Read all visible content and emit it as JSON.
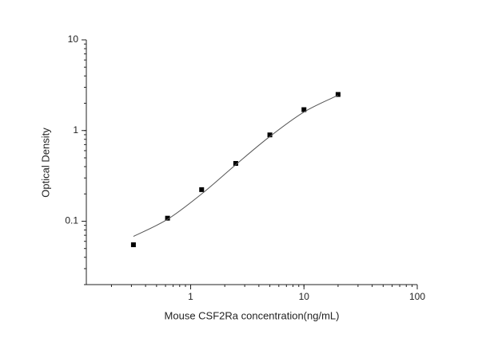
{
  "chart_data": {
    "type": "scatter",
    "x_label": "Mouse CSF2Ra concentration(ng/mL)",
    "y_label": "Optical Density",
    "x_log": true,
    "y_log": true,
    "xlim": [
      0.12,
      100
    ],
    "xticks": [
      1,
      10,
      100
    ],
    "ylim": [
      0.02,
      10
    ],
    "yticks": [
      0.1,
      1,
      10
    ],
    "series": [
      {
        "kind": "points",
        "color": "#000000",
        "x": [
          0.3125,
          0.625,
          1.25,
          2.5,
          5,
          10,
          20
        ],
        "values": [
          0.055,
          0.108,
          0.223,
          0.434,
          0.895,
          1.7,
          2.5
        ]
      },
      {
        "kind": "curve",
        "color": "#555555",
        "x": [
          0.3125,
          0.625,
          1.25,
          2.5,
          5,
          10,
          20
        ],
        "values": [
          0.068,
          0.105,
          0.2,
          0.42,
          0.86,
          1.6,
          2.45
        ]
      }
    ]
  }
}
